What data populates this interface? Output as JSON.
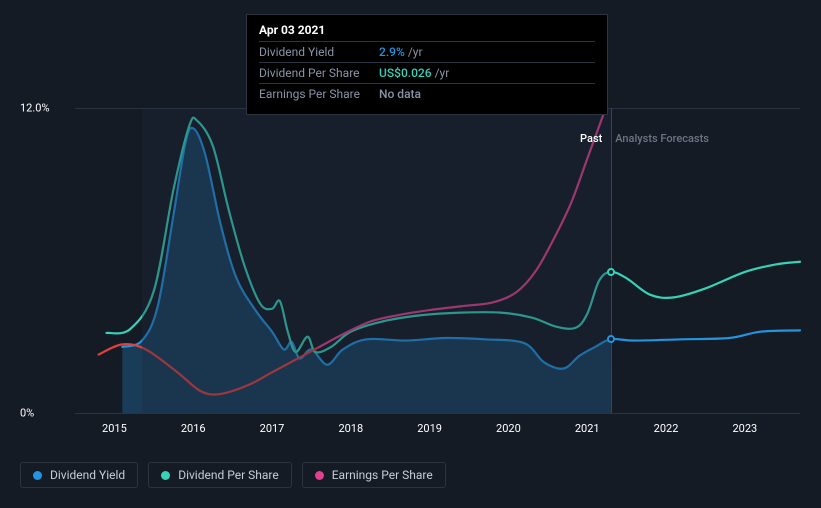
{
  "chart": {
    "type": "line",
    "background_color": "#151b24",
    "grid_color": "#2a3340",
    "text_color": "#ffffff",
    "muted_text_color": "#8a94a6",
    "ylim": [
      0,
      12
    ],
    "y_ticks": [
      0,
      12
    ],
    "y_tick_labels": [
      "0%",
      "12.0%"
    ],
    "x_years": [
      2015,
      2016,
      2017,
      2018,
      2019,
      2020,
      2021,
      2022,
      2023
    ],
    "x_domain_start": 2014.5,
    "x_domain_end": 2023.7,
    "past_shade_start": 2015.35,
    "past_shade_end": 2021.3,
    "indicator_x": 2021.3,
    "zones": {
      "past": {
        "label": "Past",
        "color": "#ffffff",
        "x": 2021.05
      },
      "forecast": {
        "label": "Analysts Forecasts",
        "color": "#6b7587",
        "x": 2021.95
      }
    },
    "series": [
      {
        "key": "dividend_yield",
        "label": "Dividend Yield",
        "color": "#2394df",
        "width": 2.2,
        "area_fill": "rgba(35,148,223,0.28)",
        "area_until_x": 2021.3,
        "points": [
          [
            2015.1,
            2.6
          ],
          [
            2015.35,
            2.85
          ],
          [
            2015.55,
            4.2
          ],
          [
            2015.75,
            7.8
          ],
          [
            2015.9,
            10.6
          ],
          [
            2016.0,
            11.2
          ],
          [
            2016.15,
            10.2
          ],
          [
            2016.35,
            7.4
          ],
          [
            2016.55,
            5.3
          ],
          [
            2016.8,
            4.0
          ],
          [
            2017.0,
            3.2
          ],
          [
            2017.15,
            2.5
          ],
          [
            2017.25,
            2.8
          ],
          [
            2017.35,
            2.15
          ],
          [
            2017.5,
            2.5
          ],
          [
            2017.7,
            1.9
          ],
          [
            2017.9,
            2.5
          ],
          [
            2018.2,
            2.9
          ],
          [
            2018.7,
            2.85
          ],
          [
            2019.2,
            2.95
          ],
          [
            2019.7,
            2.9
          ],
          [
            2020.2,
            2.75
          ],
          [
            2020.45,
            2.0
          ],
          [
            2020.7,
            1.75
          ],
          [
            2020.9,
            2.25
          ],
          [
            2021.1,
            2.6
          ],
          [
            2021.3,
            2.9
          ],
          [
            2021.6,
            2.85
          ],
          [
            2022.2,
            2.9
          ],
          [
            2022.8,
            2.95
          ],
          [
            2023.2,
            3.2
          ],
          [
            2023.7,
            3.25
          ]
        ],
        "end_marker": {
          "x": 2021.3,
          "y": 2.9
        }
      },
      {
        "key": "dividend_per_share",
        "label": "Dividend Per Share",
        "color": "#36d1b7",
        "width": 2.2,
        "points": [
          [
            2014.9,
            3.15
          ],
          [
            2015.2,
            3.3
          ],
          [
            2015.5,
            4.8
          ],
          [
            2015.75,
            8.8
          ],
          [
            2015.95,
            11.3
          ],
          [
            2016.05,
            11.5
          ],
          [
            2016.25,
            10.5
          ],
          [
            2016.45,
            8.0
          ],
          [
            2016.65,
            5.8
          ],
          [
            2016.85,
            4.3
          ],
          [
            2017.0,
            4.1
          ],
          [
            2017.1,
            4.4
          ],
          [
            2017.2,
            3.2
          ],
          [
            2017.3,
            2.4
          ],
          [
            2017.45,
            3.0
          ],
          [
            2017.55,
            2.4
          ],
          [
            2017.75,
            2.6
          ],
          [
            2018.0,
            3.2
          ],
          [
            2018.4,
            3.6
          ],
          [
            2018.9,
            3.85
          ],
          [
            2019.4,
            3.95
          ],
          [
            2019.9,
            3.95
          ],
          [
            2020.3,
            3.75
          ],
          [
            2020.6,
            3.4
          ],
          [
            2020.85,
            3.35
          ],
          [
            2021.0,
            3.9
          ],
          [
            2021.15,
            5.2
          ],
          [
            2021.3,
            5.55
          ],
          [
            2021.5,
            5.3
          ],
          [
            2021.8,
            4.65
          ],
          [
            2022.1,
            4.55
          ],
          [
            2022.5,
            4.9
          ],
          [
            2023.0,
            5.55
          ],
          [
            2023.4,
            5.85
          ],
          [
            2023.7,
            5.95
          ]
        ],
        "end_marker": {
          "x": 2021.3,
          "y": 5.55
        }
      },
      {
        "key": "earnings_per_share",
        "label": "Earnings Per Share",
        "color": "#e23f8c",
        "color_past": "#e23f3f",
        "width": 2.2,
        "points": [
          [
            2014.8,
            2.3
          ],
          [
            2015.1,
            2.7
          ],
          [
            2015.4,
            2.5
          ],
          [
            2015.8,
            1.6
          ],
          [
            2016.1,
            0.85
          ],
          [
            2016.35,
            0.75
          ],
          [
            2016.7,
            1.1
          ],
          [
            2017.0,
            1.6
          ],
          [
            2017.3,
            2.1
          ],
          [
            2017.6,
            2.6
          ],
          [
            2017.9,
            3.1
          ],
          [
            2018.25,
            3.6
          ],
          [
            2018.6,
            3.85
          ],
          [
            2019.0,
            4.05
          ],
          [
            2019.4,
            4.2
          ],
          [
            2019.8,
            4.35
          ],
          [
            2020.1,
            4.75
          ],
          [
            2020.35,
            5.6
          ],
          [
            2020.6,
            7.0
          ],
          [
            2020.8,
            8.3
          ],
          [
            2021.0,
            10.0
          ],
          [
            2021.2,
            11.7
          ]
        ]
      }
    ]
  },
  "tooltip": {
    "title": "Apr 03 2021",
    "rows": [
      {
        "label": "Dividend Yield",
        "value": "2.9%",
        "unit": "/yr",
        "color": "#2394df"
      },
      {
        "label": "Dividend Per Share",
        "value": "US$0.026",
        "unit": "/yr",
        "color": "#36d1b7"
      },
      {
        "label": "Earnings Per Share",
        "value": "No data",
        "unit": "",
        "color": "#8a94a6"
      }
    ]
  },
  "legend": [
    {
      "label": "Dividend Yield",
      "color": "#2394df"
    },
    {
      "label": "Dividend Per Share",
      "color": "#36d1b7"
    },
    {
      "label": "Earnings Per Share",
      "color": "#e23f8c"
    }
  ]
}
